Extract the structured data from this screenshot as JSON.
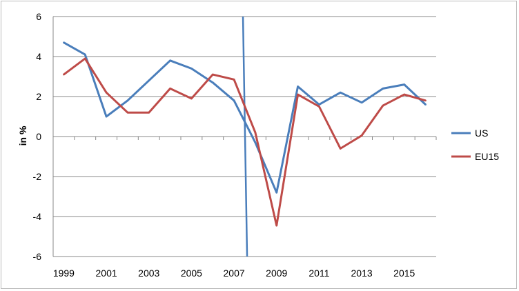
{
  "chart_data": {
    "type": "line",
    "ylabel": "in %",
    "ylim": [
      -6,
      6
    ],
    "yticks": [
      -6,
      -4,
      -2,
      0,
      2,
      4,
      6
    ],
    "xlabel": "",
    "x": [
      1999,
      2000,
      2001,
      2002,
      2003,
      2004,
      2005,
      2006,
      2007,
      2008,
      2009,
      2010,
      2011,
      2012,
      2013,
      2014,
      2015,
      2016
    ],
    "xtick_labels": [
      "1999",
      "2001",
      "2003",
      "2005",
      "2007",
      "2009",
      "2011",
      "2013",
      "2015"
    ],
    "grid": "horizontal",
    "legend_position": "right",
    "series": [
      {
        "name": "US",
        "color": "#4a7ebb",
        "values": [
          4.7,
          4.1,
          1.0,
          1.8,
          2.8,
          3.8,
          3.4,
          2.7,
          1.8,
          -0.3,
          -2.8,
          2.5,
          1.6,
          2.2,
          1.7,
          2.4,
          2.6,
          1.6
        ]
      },
      {
        "name": "EU15",
        "color": "#be4b48",
        "values": [
          3.1,
          3.9,
          2.2,
          1.2,
          1.2,
          2.4,
          1.9,
          3.1,
          2.85,
          0.2,
          -4.45,
          2.1,
          1.5,
          -0.6,
          0.05,
          1.55,
          2.1,
          1.8
        ]
      }
    ],
    "annotations": [
      {
        "type": "vertical-line",
        "x": 2007.55,
        "color": "#4a7ebb"
      }
    ]
  }
}
